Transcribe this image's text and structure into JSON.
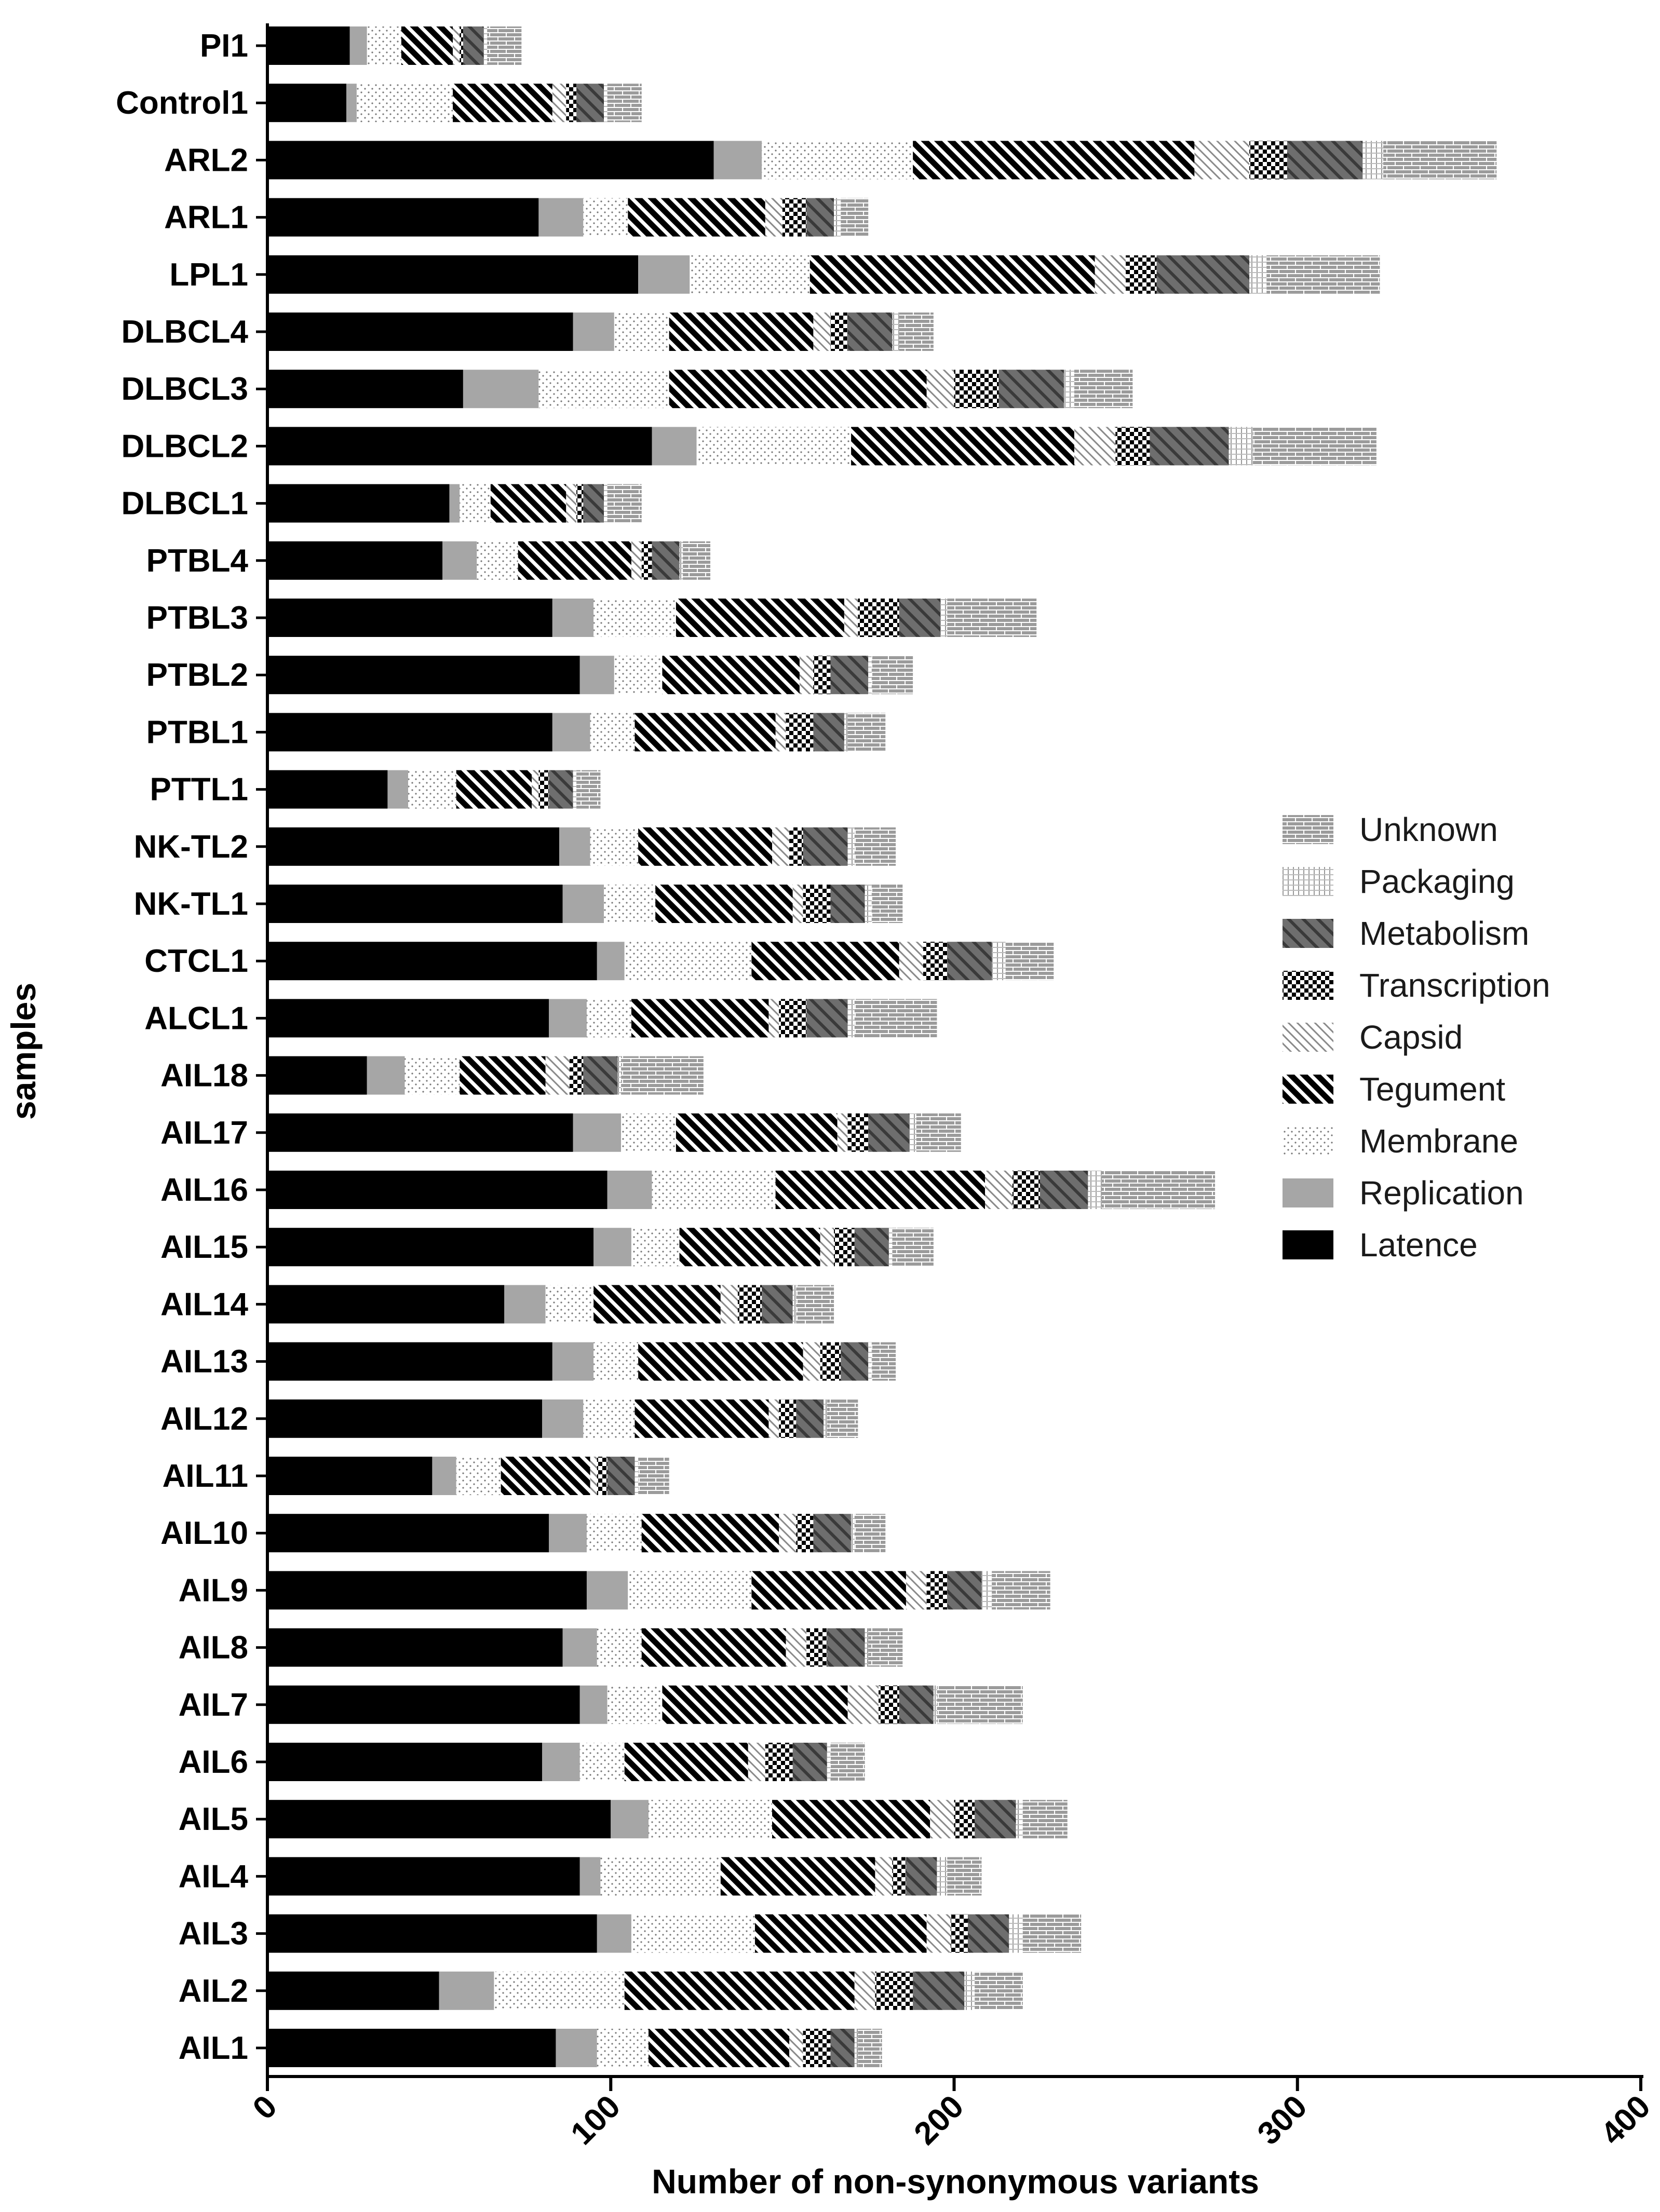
{
  "chart_data": {
    "type": "bar",
    "orientation": "horizontal",
    "stacked": true,
    "xlabel": "Number of non-synonymous variants",
    "ylabel": "samples",
    "xlim": [
      0,
      400
    ],
    "xticks": [
      0,
      100,
      200,
      300,
      400
    ],
    "grid": false,
    "legend_position": "right",
    "categories": [
      "PI1",
      "Control1",
      "ARL2",
      "ARL1",
      "LPL1",
      "DLBCL4",
      "DLBCL3",
      "DLBCL2",
      "DLBCL1",
      "PTBL4",
      "PTBL3",
      "PTBL2",
      "PTBL1",
      "PTTL1",
      "NK-TL2",
      "NK-TL1",
      "CTCL1",
      "ALCL1",
      "AIL18",
      "AIL17",
      "AIL16",
      "AIL15",
      "AIL14",
      "AIL13",
      "AIL12",
      "AIL11",
      "AIL10",
      "AIL9",
      "AIL8",
      "AIL7",
      "AIL6",
      "AIL5",
      "AIL4",
      "AIL3",
      "AIL2",
      "AIL1"
    ],
    "series": [
      {
        "name": "Latence",
        "fill": "#000000",
        "values": [
          24,
          23,
          130,
          79,
          108,
          89,
          57,
          112,
          53,
          51,
          83,
          91,
          83,
          35,
          85,
          86,
          96,
          82,
          29,
          89,
          99,
          95,
          69,
          83,
          80,
          48,
          82,
          93,
          86,
          91,
          80,
          100,
          91,
          96,
          50,
          84
        ]
      },
      {
        "name": "Replication",
        "fill": "#a6a6a6",
        "values": [
          5,
          3,
          14,
          13,
          15,
          12,
          22,
          13,
          3,
          10,
          12,
          10,
          11,
          6,
          9,
          12,
          8,
          11,
          11,
          14,
          13,
          11,
          12,
          12,
          12,
          7,
          11,
          12,
          10,
          8,
          11,
          11,
          6,
          10,
          16,
          12
        ]
      },
      {
        "name": "Membrane",
        "fill": "dots",
        "values": [
          10,
          28,
          44,
          13,
          35,
          16,
          38,
          45,
          9,
          12,
          24,
          14,
          13,
          14,
          14,
          15,
          37,
          13,
          16,
          16,
          36,
          14,
          14,
          13,
          15,
          13,
          16,
          36,
          13,
          16,
          13,
          36,
          35,
          36,
          38,
          15
        ]
      },
      {
        "name": "Tegument",
        "fill": "diag",
        "values": [
          15,
          29,
          82,
          40,
          83,
          42,
          75,
          65,
          22,
          33,
          49,
          40,
          41,
          22,
          39,
          40,
          43,
          40,
          25,
          47,
          61,
          41,
          37,
          48,
          39,
          26,
          40,
          45,
          42,
          54,
          36,
          46,
          45,
          50,
          67,
          41
        ]
      },
      {
        "name": "Capsid",
        "fill": "hatch",
        "values": [
          2,
          4,
          16,
          5,
          9,
          5,
          8,
          12,
          3,
          3,
          4,
          4,
          3,
          2,
          5,
          3,
          7,
          3,
          7,
          3,
          8,
          4,
          5,
          5,
          3,
          2,
          5,
          6,
          6,
          9,
          5,
          7,
          5,
          7,
          6,
          4
        ]
      },
      {
        "name": "Transcription",
        "fill": "check",
        "values": [
          1,
          3,
          11,
          7,
          9,
          5,
          13,
          10,
          2,
          3,
          12,
          5,
          8,
          3,
          4,
          8,
          7,
          8,
          4,
          6,
          8,
          6,
          7,
          6,
          5,
          3,
          5,
          6,
          6,
          6,
          8,
          6,
          4,
          5,
          11,
          8
        ]
      },
      {
        "name": "Metabolism",
        "fill": "metab",
        "values": [
          6,
          8,
          22,
          8,
          27,
          13,
          19,
          23,
          6,
          8,
          12,
          11,
          9,
          7,
          13,
          10,
          13,
          12,
          10,
          12,
          14,
          10,
          9,
          8,
          8,
          8,
          11,
          10,
          11,
          10,
          10,
          12,
          9,
          12,
          15,
          7
        ]
      },
      {
        "name": "Packaging",
        "fill": "pack",
        "values": [
          1,
          1,
          6,
          2,
          5,
          2,
          3,
          7,
          1,
          1,
          2,
          1,
          1,
          1,
          2,
          2,
          4,
          2,
          1,
          2,
          4,
          1,
          1,
          1,
          1,
          1,
          1,
          3,
          1,
          1,
          1,
          2,
          3,
          4,
          3,
          1
        ]
      },
      {
        "name": "Unknown",
        "fill": "brick",
        "values": [
          10,
          10,
          33,
          8,
          33,
          10,
          17,
          36,
          10,
          8,
          26,
          12,
          11,
          7,
          12,
          9,
          14,
          24,
          24,
          13,
          33,
          12,
          11,
          7,
          9,
          9,
          9,
          17,
          10,
          25,
          10,
          13,
          10,
          17,
          14,
          7
        ]
      }
    ],
    "legend": [
      {
        "label": "Unknown",
        "fill": "brick"
      },
      {
        "label": "Packaging",
        "fill": "pack"
      },
      {
        "label": "Metabolism",
        "fill": "metab"
      },
      {
        "label": "Transcription",
        "fill": "check"
      },
      {
        "label": "Capsid",
        "fill": "hatch"
      },
      {
        "label": "Tegument",
        "fill": "diag"
      },
      {
        "label": "Membrane",
        "fill": "dots"
      },
      {
        "label": "Replication",
        "fill": "#a6a6a6"
      },
      {
        "label": "Latence",
        "fill": "#000000"
      }
    ]
  }
}
